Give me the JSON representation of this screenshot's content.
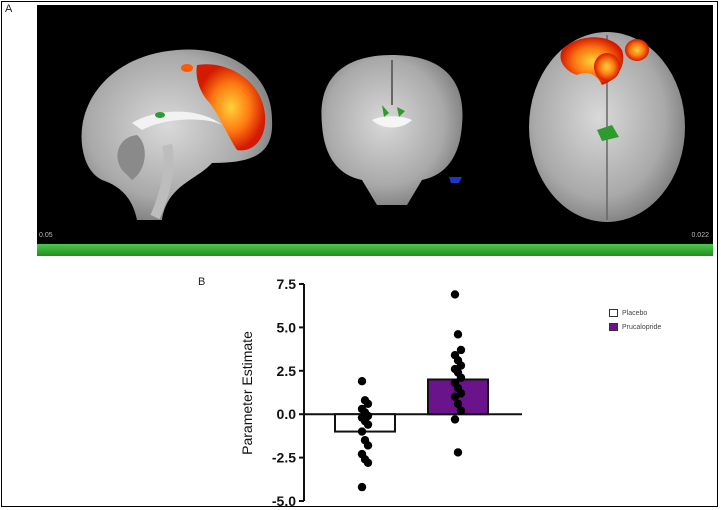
{
  "panels": {
    "a_label": "A",
    "b_label": "B",
    "colorbar_min": "0.05",
    "colorbar_max": "0.022"
  },
  "colors": {
    "placebo": "#ffffff",
    "prucalopride": "#6b138a",
    "activation": "#ff6a00",
    "colorbar": "#2fae2f"
  },
  "chart_data": {
    "type": "bar",
    "categories": [
      "Placebo",
      "Prucalopride"
    ],
    "values": [
      -1.0,
      2.0
    ],
    "ylabel": "Parameter Estimate",
    "xlabel": "",
    "ylim": [
      -5.0,
      7.5
    ],
    "yticks": [
      "7.5",
      "5.0",
      "2.5",
      "0.0",
      "-2.5",
      "-5.0"
    ],
    "ytick_values": [
      7.5,
      5.0,
      2.5,
      0.0,
      -2.5,
      -5.0
    ],
    "legend": [
      "Placebo",
      "Prucalopride"
    ],
    "legend_position": "top-right",
    "points": {
      "Placebo": [
        1.9,
        0.8,
        0.6,
        0.3,
        0.1,
        -0.1,
        -0.2,
        -0.4,
        -0.6,
        -1.0,
        -1.5,
        -1.8,
        -2.3,
        -2.6,
        -2.8,
        -4.2
      ],
      "Prucalopride": [
        6.9,
        4.6,
        3.7,
        3.4,
        3.1,
        2.8,
        2.6,
        2.4,
        2.1,
        1.8,
        1.5,
        1.2,
        1.0,
        0.6,
        0.2,
        -0.3,
        -2.2
      ]
    }
  }
}
